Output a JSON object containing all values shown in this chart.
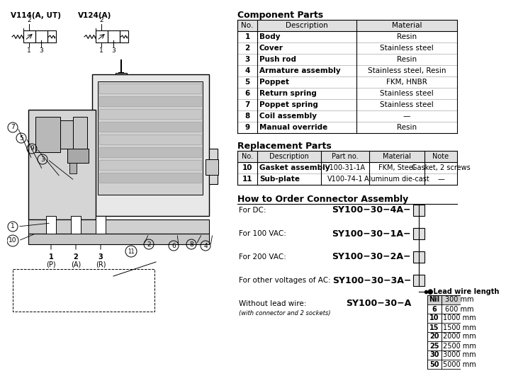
{
  "bg_color": "#ffffff",
  "title_left1": "V114(A, UT)",
  "title_left2": "V124(A)",
  "component_parts_title": "Component Parts",
  "component_headers": [
    "No.",
    "Description",
    "Material"
  ],
  "component_rows": [
    [
      "1",
      "Body",
      "Resin"
    ],
    [
      "2",
      "Cover",
      "Stainless steel"
    ],
    [
      "3",
      "Push rod",
      "Resin"
    ],
    [
      "4",
      "Armature assembly",
      "Stainless steel, Resin"
    ],
    [
      "5",
      "Poppet",
      "FKM, HNBR"
    ],
    [
      "6",
      "Return spring",
      "Stainless steel"
    ],
    [
      "7",
      "Poppet spring",
      "Stainless steel"
    ],
    [
      "8",
      "Coil assembly",
      "—"
    ],
    [
      "9",
      "Manual override",
      "Resin"
    ]
  ],
  "replacement_parts_title": "Replacement Parts",
  "replacement_headers": [
    "No.",
    "Description",
    "Part no.",
    "Material",
    "Note"
  ],
  "replacement_rows": [
    [
      "10",
      "Gasket assembly",
      "V100-31-1A",
      "FKM, Steel",
      "Gasket, 2 screws"
    ],
    [
      "11",
      "Sub-plate",
      "V100-74-1",
      "Aluminum die-cast",
      "—"
    ]
  ],
  "order_title": "How to Order Connector Assembly",
  "order_lines": [
    [
      "For DC:",
      "SY100−30−4A−",
      true
    ],
    [
      "For 100 VAC:",
      "SY100−30−1A−",
      true
    ],
    [
      "For 200 VAC:",
      "SY100−30−2A−",
      true
    ],
    [
      "For other voltages of AC:",
      "SY100−30−3A−",
      true
    ],
    [
      "Without lead wire:",
      "SY100−30−A",
      false
    ]
  ],
  "order_note": "(with connector and 2 sockets)",
  "lead_wire_title": "●Lead wire length",
  "lead_wire_rows": [
    [
      "Nil",
      "300 mm"
    ],
    [
      "6",
      "600 mm"
    ],
    [
      "10",
      "1000 mm"
    ],
    [
      "15",
      "1500 mm"
    ],
    [
      "20",
      "2000 mm"
    ],
    [
      "25",
      "2500 mm"
    ],
    [
      "30",
      "3000 mm"
    ],
    [
      "50",
      "5000 mm"
    ]
  ]
}
